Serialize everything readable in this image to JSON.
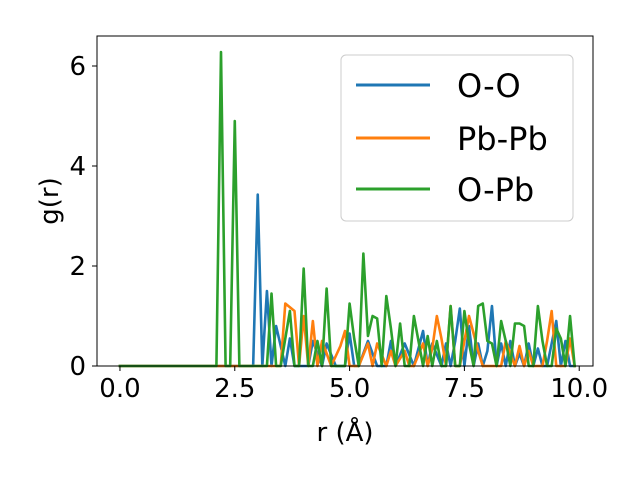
{
  "chart_data": {
    "type": "line",
    "xlabel": "r (Å)",
    "ylabel": "g(r)",
    "xlim": [
      -0.5,
      10.3
    ],
    "ylim": [
      0,
      6.6
    ],
    "xticks": [
      0.0,
      2.5,
      5.0,
      7.5,
      10.0
    ],
    "xtick_labels": [
      "0.0",
      "2.5",
      "5.0",
      "7.5",
      "10.0"
    ],
    "yticks": [
      0,
      2,
      4,
      6
    ],
    "ytick_labels": [
      "0",
      "2",
      "4",
      "6"
    ],
    "legend_position": "upper right",
    "series": [
      {
        "name": "O-O",
        "color": "#1f77b4",
        "x": [
          0.0,
          2.9,
          3.0,
          3.1,
          3.2,
          3.3,
          3.4,
          3.6,
          3.7,
          3.8,
          4.1,
          4.2,
          4.4,
          4.5,
          4.7,
          4.9,
          5.0,
          5.1,
          5.2,
          5.4,
          5.6,
          5.8,
          5.9,
          6.0,
          6.2,
          6.4,
          6.6,
          6.7,
          6.8,
          7.0,
          7.1,
          7.2,
          7.3,
          7.4,
          7.5,
          7.6,
          7.7,
          7.8,
          7.9,
          8.0,
          8.1,
          8.2,
          8.3,
          8.4,
          8.5,
          8.6,
          8.7,
          8.8,
          8.9,
          9.0,
          9.1,
          9.2,
          9.3,
          9.4,
          9.5,
          9.6,
          9.7,
          9.8,
          9.9
        ],
        "y": [
          0.0,
          0.0,
          3.43,
          0.0,
          1.5,
          0.0,
          0.8,
          0.0,
          0.55,
          0.0,
          0.0,
          0.5,
          0.0,
          0.45,
          0.0,
          0.0,
          0.65,
          0.0,
          0.0,
          0.5,
          0.0,
          0.0,
          0.5,
          0.0,
          0.45,
          0.0,
          0.7,
          0.0,
          0.45,
          0.0,
          0.45,
          0.0,
          0.5,
          1.15,
          0.0,
          0.8,
          0.0,
          0.45,
          0.0,
          0.3,
          1.2,
          0.0,
          0.45,
          0.0,
          0.5,
          0.0,
          0.25,
          0.0,
          0.45,
          0.0,
          0.35,
          0.0,
          0.0,
          0.45,
          0.9,
          0.0,
          0.5,
          0.0,
          0.0
        ]
      },
      {
        "name": "Pb-Pb",
        "color": "#ff7f0e",
        "x": [
          0.0,
          3.5,
          3.6,
          3.8,
          3.9,
          4.0,
          4.1,
          4.2,
          4.3,
          4.4,
          4.6,
          4.8,
          4.9,
          5.0,
          5.2,
          5.4,
          5.5,
          5.6,
          5.8,
          5.9,
          6.0,
          6.2,
          6.3,
          6.4,
          6.6,
          6.7,
          6.8,
          6.9,
          7.0,
          7.1,
          7.2,
          7.3,
          7.4,
          7.6,
          7.8,
          7.9,
          8.0,
          8.2,
          8.3,
          8.4,
          8.6,
          8.7,
          8.8,
          8.9,
          9.0,
          9.2,
          9.3,
          9.4,
          9.5,
          9.6,
          9.7,
          9.8,
          9.9
        ],
        "y": [
          0.0,
          0.0,
          1.25,
          1.1,
          0.0,
          1.0,
          0.0,
          0.9,
          0.0,
          0.5,
          0.0,
          0.4,
          0.7,
          0.0,
          0.0,
          0.45,
          0.0,
          0.45,
          0.0,
          0.3,
          0.0,
          0.3,
          0.0,
          0.0,
          0.45,
          0.0,
          0.35,
          1.0,
          0.55,
          0.0,
          1.2,
          0.0,
          0.0,
          1.0,
          0.3,
          0.0,
          0.0,
          0.0,
          0.0,
          0.5,
          0.0,
          0.4,
          0.0,
          0.3,
          0.0,
          0.0,
          0.5,
          1.1,
          0.0,
          0.0,
          0.0,
          0.55,
          0.0
        ]
      },
      {
        "name": "O-Pb",
        "color": "#2ca02c",
        "x": [
          0.0,
          2.1,
          2.2,
          2.3,
          2.4,
          2.5,
          2.6,
          3.1,
          3.2,
          3.3,
          3.4,
          3.5,
          3.6,
          3.7,
          3.8,
          3.9,
          4.0,
          4.1,
          4.2,
          4.3,
          4.4,
          4.5,
          4.6,
          4.7,
          4.8,
          4.9,
          5.0,
          5.1,
          5.2,
          5.3,
          5.4,
          5.5,
          5.6,
          5.7,
          5.8,
          5.9,
          6.0,
          6.1,
          6.2,
          6.3,
          6.4,
          6.5,
          6.6,
          6.7,
          6.8,
          6.9,
          7.0,
          7.1,
          7.2,
          7.3,
          7.4,
          7.5,
          7.6,
          7.7,
          7.8,
          7.9,
          8.0,
          8.1,
          8.2,
          8.3,
          8.4,
          8.5,
          8.6,
          8.7,
          8.8,
          8.9,
          9.0,
          9.1,
          9.2,
          9.3,
          9.4,
          9.5,
          9.6,
          9.7,
          9.8,
          9.9
        ],
        "y": [
          0.0,
          0.0,
          6.28,
          0.0,
          0.0,
          4.9,
          0.0,
          0.0,
          0.0,
          1.45,
          0.0,
          0.0,
          0.55,
          1.1,
          0.0,
          0.0,
          1.95,
          0.0,
          0.0,
          0.5,
          0.0,
          1.55,
          0.0,
          0.0,
          0.0,
          0.0,
          1.25,
          0.55,
          0.0,
          2.25,
          0.6,
          1.0,
          0.95,
          0.0,
          1.4,
          0.75,
          0.0,
          0.85,
          0.0,
          0.0,
          1.0,
          0.5,
          0.0,
          0.6,
          0.0,
          0.5,
          0.0,
          0.0,
          1.2,
          0.0,
          0.0,
          1.1,
          0.45,
          0.0,
          1.2,
          1.25,
          0.5,
          0.45,
          0.0,
          0.9,
          0.5,
          0.0,
          0.85,
          0.85,
          0.8,
          0.0,
          0.0,
          1.2,
          0.5,
          0.0,
          0.0,
          0.75,
          0.55,
          0.0,
          1.0,
          0.0
        ]
      }
    ]
  }
}
